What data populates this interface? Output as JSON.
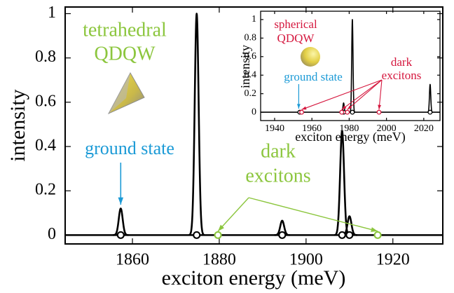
{
  "chart_data": [
    {
      "type": "spectrum",
      "x_label": "exciton energy (meV)",
      "y_label": "intensity",
      "system_label": [
        "tetrahedral",
        "QDQW"
      ],
      "system_color": "#8cc63e",
      "ground_state_label": "ground state",
      "ground_state_color": "#1b9ad6",
      "dark_label": [
        "dark",
        "excitons"
      ],
      "dark_color": "#8cc63e",
      "line_color": "#000000",
      "xlim": [
        1844.5,
        1931.5
      ],
      "ylim": [
        -0.04,
        1.03
      ],
      "xticks": [
        1860,
        1880,
        1900,
        1920
      ],
      "yticks": [
        0,
        0.2,
        0.4,
        0.6,
        0.8,
        1
      ],
      "peaks": {
        "x": [
          1857.3,
          1874.8,
          1894.5,
          1908.3,
          1910.0
        ],
        "values": [
          0.12,
          1,
          0.065,
          0.47,
          0.085
        ]
      },
      "bright_states": [
        1857.3,
        1874.8,
        1894.5,
        1908.3,
        1910.0
      ],
      "dark_states": [
        1879.7,
        1916.5
      ]
    },
    {
      "type": "spectrum",
      "x_label": "exciton energy (meV)",
      "y_label": "intensity",
      "system_label": [
        "spherical",
        "QDQW"
      ],
      "system_color": "#d5173e",
      "ground_state_label": "ground state",
      "ground_state_color": "#1b9ad6",
      "dark_label": [
        "dark",
        "excitons"
      ],
      "dark_color": "#d5173e",
      "line_color": "#000000",
      "xlim": [
        1932.5,
        2028.7
      ],
      "ylim": [
        -0.09,
        1.09
      ],
      "xticks": [
        1940,
        1960,
        1980,
        2000,
        2020
      ],
      "yticks": [
        0,
        0.2,
        0.4,
        0.6,
        0.8,
        1
      ],
      "peaks": {
        "x": [
          1977.0,
          1981.7,
          2023.4
        ],
        "values": [
          0.1,
          1,
          0.3
        ]
      },
      "bright_states": [
        1953.5,
        1977.0,
        1981.7,
        2023.4
      ],
      "dark_states": [
        1954.5,
        1976.0,
        1979.0,
        1996.0
      ]
    }
  ]
}
